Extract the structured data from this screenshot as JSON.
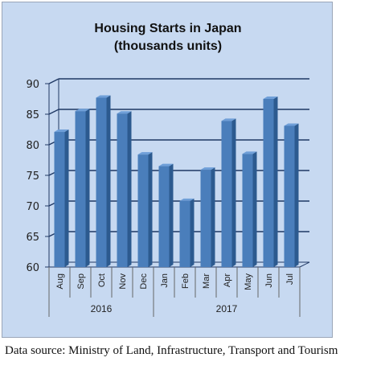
{
  "chart_data": {
    "type": "bar",
    "title": "Housing Starts in Japan",
    "subtitle": "(thousands units)",
    "categories": [
      "Aug",
      "Sep",
      "Oct",
      "Nov",
      "Dec",
      "Jan",
      "Feb",
      "Mar",
      "Apr",
      "May",
      "Jun",
      "Jul"
    ],
    "groups": [
      {
        "label": "2016",
        "categories": [
          "Aug",
          "Sep",
          "Oct",
          "Nov",
          "Dec"
        ]
      },
      {
        "label": "2017",
        "categories": [
          "Jan",
          "Feb",
          "Mar",
          "Apr",
          "May",
          "Jun",
          "Jul"
        ]
      }
    ],
    "values": [
      82.1,
      85.5,
      87.7,
      85.1,
      78.4,
      76.5,
      70.8,
      75.9,
      83.9,
      78.5,
      87.5,
      83.1
    ],
    "ylim": [
      60,
      90
    ],
    "yticks": [
      "60",
      "65",
      "70",
      "75",
      "80",
      "85",
      "90"
    ],
    "grid": true,
    "legend": "none",
    "colors": {
      "bar_front": "#4a7ebb",
      "bar_side": "#2c5a8f",
      "bar_top": "#6f9fd8",
      "background": "#c7d9f1",
      "gridline": "#1f3864"
    }
  },
  "footer": {
    "source": "Data source: Ministry of Land, Infrastructure, Transport and Tourism"
  }
}
